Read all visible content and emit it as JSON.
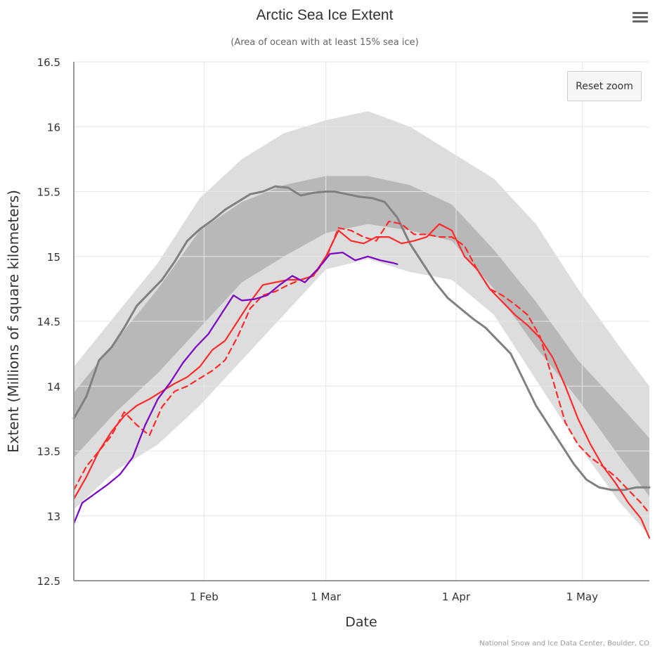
{
  "chart_data": {
    "type": "line",
    "title": "Arctic Sea Ice Extent",
    "subtitle": "(Area of ocean with at least 15% sea ice)",
    "xlabel": "Date",
    "ylabel": "Extent (Millions of square kilometers)",
    "x_type": "date",
    "xlim": [
      "2024-01-01",
      "2024-05-17"
    ],
    "ylim": [
      12.5,
      16.5
    ],
    "yticks": [
      12.5,
      13,
      13.5,
      14,
      14.5,
      15,
      15.5,
      16,
      16.5
    ],
    "ytick_labels": [
      "12.5",
      "13",
      "13.5",
      "14",
      "14.5",
      "15",
      "15.5",
      "16",
      "16.5"
    ],
    "xticks": [
      "2024-02-01",
      "2024-03-01",
      "2024-04-01",
      "2024-05-01"
    ],
    "xtick_labels": [
      "1 Feb",
      "1 Mar",
      "1 Apr",
      "1 May"
    ],
    "grid": true,
    "legend": "none",
    "credits": "National Snow and Ice Data Center, Boulder, CO",
    "bands": [
      {
        "kind": "outer-range",
        "color": "#dddddd",
        "x": [
          "2024-01-01",
          "2024-01-11",
          "2024-01-21",
          "2024-01-31",
          "2024-02-10",
          "2024-02-20",
          "2024-03-01",
          "2024-03-11",
          "2024-03-21",
          "2024-03-31",
          "2024-04-10",
          "2024-04-20",
          "2024-04-30",
          "2024-05-10",
          "2024-05-17"
        ],
        "upper": [
          14.15,
          14.55,
          14.95,
          15.45,
          15.75,
          15.95,
          16.05,
          16.12,
          16.0,
          15.8,
          15.6,
          15.25,
          14.75,
          14.3,
          14.0
        ],
        "lower": [
          13.05,
          13.35,
          13.55,
          13.85,
          14.2,
          14.55,
          14.9,
          14.98,
          14.88,
          14.82,
          14.55,
          14.05,
          13.55,
          13.1,
          12.85
        ]
      },
      {
        "kind": "inner-range",
        "color": "#b8b8b8",
        "x": [
          "2024-01-01",
          "2024-01-11",
          "2024-01-21",
          "2024-01-31",
          "2024-02-10",
          "2024-02-20",
          "2024-03-01",
          "2024-03-11",
          "2024-03-21",
          "2024-03-31",
          "2024-04-10",
          "2024-04-20",
          "2024-04-30",
          "2024-05-10",
          "2024-05-17"
        ],
        "upper": [
          13.95,
          14.35,
          14.75,
          15.2,
          15.42,
          15.55,
          15.62,
          15.62,
          15.55,
          15.4,
          15.05,
          14.65,
          14.2,
          13.85,
          13.6
        ],
        "lower": [
          13.45,
          13.8,
          14.1,
          14.45,
          14.8,
          15.0,
          15.18,
          15.25,
          15.2,
          15.12,
          14.75,
          14.3,
          13.9,
          13.45,
          13.15
        ]
      }
    ],
    "series": [
      {
        "color": "#808080",
        "dash": "solid",
        "x": [
          "2024-01-01",
          "2024-01-04",
          "2024-01-07",
          "2024-01-10",
          "2024-01-13",
          "2024-01-16",
          "2024-01-19",
          "2024-01-22",
          "2024-01-25",
          "2024-01-28",
          "2024-01-31",
          "2024-02-03",
          "2024-02-06",
          "2024-02-09",
          "2024-02-12",
          "2024-02-15",
          "2024-02-18",
          "2024-02-21",
          "2024-02-24",
          "2024-02-27",
          "2024-03-01",
          "2024-03-03",
          "2024-03-06",
          "2024-03-09",
          "2024-03-12",
          "2024-03-15",
          "2024-03-18",
          "2024-03-21",
          "2024-03-24",
          "2024-03-27",
          "2024-03-30",
          "2024-04-02",
          "2024-04-05",
          "2024-04-08",
          "2024-04-11",
          "2024-04-14",
          "2024-04-17",
          "2024-04-20",
          "2024-04-23",
          "2024-04-26",
          "2024-04-29",
          "2024-05-02",
          "2024-05-05",
          "2024-05-08",
          "2024-05-11",
          "2024-05-14",
          "2024-05-17"
        ],
        "values": [
          13.75,
          13.92,
          14.2,
          14.3,
          14.45,
          14.62,
          14.72,
          14.82,
          14.96,
          15.12,
          15.21,
          15.28,
          15.36,
          15.42,
          15.48,
          15.5,
          15.54,
          15.53,
          15.47,
          15.49,
          15.5,
          15.5,
          15.48,
          15.46,
          15.45,
          15.42,
          15.3,
          15.1,
          14.95,
          14.8,
          14.68,
          14.6,
          14.52,
          14.45,
          14.35,
          14.25,
          14.05,
          13.85,
          13.7,
          13.55,
          13.4,
          13.28,
          13.22,
          13.2,
          13.2,
          13.22,
          13.22
        ]
      },
      {
        "color": "#ff2a2a",
        "dash": "solid",
        "x": [
          "2024-01-01",
          "2024-01-04",
          "2024-01-07",
          "2024-01-10",
          "2024-01-13",
          "2024-01-16",
          "2024-01-19",
          "2024-01-22",
          "2024-01-25",
          "2024-01-28",
          "2024-01-31",
          "2024-02-03",
          "2024-02-06",
          "2024-02-09",
          "2024-02-12",
          "2024-02-15",
          "2024-02-18",
          "2024-02-21",
          "2024-02-24",
          "2024-02-27",
          "2024-03-01",
          "2024-03-04",
          "2024-03-07",
          "2024-03-10",
          "2024-03-13",
          "2024-03-16",
          "2024-03-19",
          "2024-03-22",
          "2024-03-25",
          "2024-03-28",
          "2024-03-31",
          "2024-04-03",
          "2024-04-06",
          "2024-04-09",
          "2024-04-12",
          "2024-04-15",
          "2024-04-18",
          "2024-04-21",
          "2024-04-24",
          "2024-04-27",
          "2024-04-30",
          "2024-05-03",
          "2024-05-06",
          "2024-05-09",
          "2024-05-12",
          "2024-05-15",
          "2024-05-17"
        ],
        "values": [
          13.13,
          13.3,
          13.5,
          13.65,
          13.77,
          13.85,
          13.9,
          13.96,
          14.02,
          14.07,
          14.15,
          14.28,
          14.35,
          14.5,
          14.65,
          14.78,
          14.8,
          14.82,
          14.82,
          14.85,
          15.0,
          15.2,
          15.12,
          15.1,
          15.15,
          15.15,
          15.1,
          15.12,
          15.15,
          15.25,
          15.2,
          15.0,
          14.9,
          14.75,
          14.65,
          14.55,
          14.47,
          14.37,
          14.22,
          14.0,
          13.75,
          13.55,
          13.38,
          13.25,
          13.1,
          12.98,
          12.83
        ]
      },
      {
        "color": "#ff2a2a",
        "dash": "dashed",
        "x": [
          "2024-01-01",
          "2024-01-04",
          "2024-01-07",
          "2024-01-10",
          "2024-01-13",
          "2024-01-16",
          "2024-01-19",
          "2024-01-22",
          "2024-01-25",
          "2024-01-28",
          "2024-01-31",
          "2024-02-03",
          "2024-02-06",
          "2024-02-09",
          "2024-02-12",
          "2024-02-15",
          "2024-02-18",
          "2024-02-21",
          "2024-02-24",
          "2024-02-27",
          "2024-03-01",
          "2024-03-04",
          "2024-03-07",
          "2024-03-10",
          "2024-03-13",
          "2024-03-16",
          "2024-03-19",
          "2024-03-22",
          "2024-03-25",
          "2024-03-28",
          "2024-03-31",
          "2024-04-03",
          "2024-04-06",
          "2024-04-09",
          "2024-04-12",
          "2024-04-15",
          "2024-04-18",
          "2024-04-21",
          "2024-04-24",
          "2024-04-27",
          "2024-04-30",
          "2024-05-03",
          "2024-05-06",
          "2024-05-09",
          "2024-05-12",
          "2024-05-15",
          "2024-05-17"
        ],
        "values": [
          13.2,
          13.38,
          13.5,
          13.62,
          13.8,
          13.7,
          13.62,
          13.84,
          13.96,
          14.0,
          14.06,
          14.12,
          14.2,
          14.38,
          14.6,
          14.7,
          14.73,
          14.78,
          14.82,
          14.85,
          14.98,
          15.22,
          15.2,
          15.15,
          15.12,
          15.27,
          15.25,
          15.17,
          15.17,
          15.15,
          15.15,
          15.08,
          14.9,
          14.75,
          14.7,
          14.63,
          14.55,
          14.38,
          14.05,
          13.72,
          13.55,
          13.45,
          13.38,
          13.3,
          13.2,
          13.1,
          13.02
        ]
      },
      {
        "color": "#7a00c8",
        "dash": "solid",
        "x": [
          "2024-01-01",
          "2024-01-03",
          "2024-01-06",
          "2024-01-09",
          "2024-01-12",
          "2024-01-15",
          "2024-01-18",
          "2024-01-21",
          "2024-01-24",
          "2024-01-27",
          "2024-01-30",
          "2024-02-02",
          "2024-02-05",
          "2024-02-08",
          "2024-02-10",
          "2024-02-13",
          "2024-02-16",
          "2024-02-19",
          "2024-02-22",
          "2024-02-25",
          "2024-02-28",
          "2024-03-02",
          "2024-03-05",
          "2024-03-08",
          "2024-03-11",
          "2024-03-14",
          "2024-03-17",
          "2024-03-18"
        ],
        "values": [
          12.94,
          13.1,
          13.17,
          13.24,
          13.32,
          13.45,
          13.7,
          13.9,
          14.03,
          14.18,
          14.3,
          14.4,
          14.55,
          14.7,
          14.66,
          14.67,
          14.7,
          14.78,
          14.85,
          14.8,
          14.9,
          15.02,
          15.03,
          14.97,
          15.0,
          14.97,
          14.95,
          14.94
        ]
      }
    ]
  },
  "ui": {
    "reset_zoom_label": "Reset zoom",
    "menu_icon": "hamburger-menu-icon"
  }
}
